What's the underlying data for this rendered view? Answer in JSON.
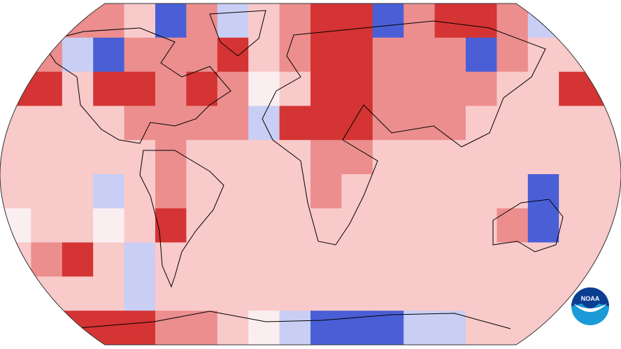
{
  "map": {
    "projection": "robinson",
    "colors": {
      "-2": "#4a5fd6",
      "-1": "#c9cef4",
      "0": "#fbeef0",
      "1": "#f9caca",
      "2": "#ec8e8e",
      "3": "#d43434"
    },
    "anomaly_grid": [
      [
        1,
        1,
        2,
        2,
        1,
        -2,
        2,
        -1,
        1,
        2,
        3,
        3,
        -2,
        2,
        3,
        3,
        2,
        -1,
        1,
        1
      ],
      [
        1,
        2,
        -1,
        -2,
        2,
        2,
        2,
        3,
        1,
        2,
        3,
        3,
        2,
        2,
        2,
        -2,
        2,
        1,
        1,
        1
      ],
      [
        3,
        3,
        1,
        3,
        3,
        2,
        3,
        2,
        0,
        1,
        3,
        3,
        2,
        2,
        2,
        2,
        1,
        1,
        3,
        3
      ],
      [
        1,
        1,
        1,
        1,
        2,
        2,
        2,
        2,
        -1,
        3,
        3,
        3,
        2,
        2,
        2,
        1,
        1,
        1,
        1,
        1
      ],
      [
        1,
        1,
        1,
        1,
        1,
        2,
        1,
        1,
        1,
        1,
        2,
        2,
        1,
        1,
        1,
        1,
        1,
        1,
        1,
        1
      ],
      [
        1,
        1,
        1,
        -1,
        1,
        2,
        1,
        1,
        1,
        1,
        2,
        1,
        1,
        1,
        1,
        1,
        1,
        -2,
        1,
        1
      ],
      [
        0,
        1,
        1,
        0,
        1,
        3,
        1,
        1,
        1,
        1,
        1,
        1,
        1,
        1,
        1,
        1,
        2,
        -2,
        1,
        1
      ],
      [
        1,
        2,
        3,
        1,
        -1,
        1,
        1,
        1,
        1,
        1,
        1,
        1,
        1,
        1,
        1,
        1,
        1,
        1,
        1,
        1
      ],
      [
        1,
        1,
        1,
        1,
        -1,
        1,
        1,
        1,
        1,
        1,
        1,
        1,
        1,
        1,
        1,
        1,
        1,
        1,
        1,
        1
      ],
      [
        3,
        3,
        3,
        3,
        3,
        2,
        2,
        1,
        0,
        -1,
        -2,
        -2,
        -2,
        -1,
        -1,
        1,
        1,
        1,
        1,
        1
      ]
    ]
  },
  "logo": {
    "text": "NOAA",
    "colors": {
      "dark": "#0b3d91",
      "light": "#1a9ad6"
    }
  }
}
